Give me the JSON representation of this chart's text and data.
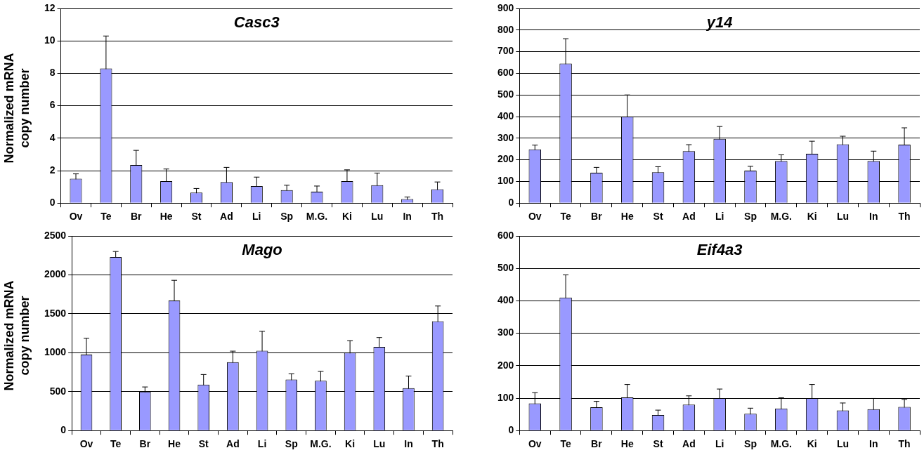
{
  "chart_data": [
    {
      "type": "bar",
      "title": "Casc3",
      "ylabel": "Normalized mRNA copy number",
      "categories": [
        "Ov",
        "Te",
        "Br",
        "He",
        "St",
        "Ad",
        "Li",
        "Sp",
        "M.G.",
        "Ki",
        "Lu",
        "In",
        "Th"
      ],
      "color": "#9999ff",
      "values": [
        1.5,
        8.3,
        2.35,
        1.35,
        0.65,
        1.3,
        1.05,
        0.8,
        0.7,
        1.35,
        1.1,
        0.25,
        0.85
      ],
      "errors": [
        0.3,
        2.0,
        0.9,
        0.75,
        0.25,
        0.9,
        0.55,
        0.3,
        0.35,
        0.7,
        0.75,
        0.12,
        0.45
      ],
      "ylim": [
        0,
        12
      ],
      "yticks": [
        0,
        2,
        4,
        6,
        8,
        10,
        12
      ],
      "grid": "y"
    },
    {
      "type": "bar",
      "title": "y14",
      "categories": [
        "Ov",
        "Te",
        "Br",
        "He",
        "St",
        "Ad",
        "Li",
        "Sp",
        "M.G.",
        "Ki",
        "Lu",
        "In",
        "Th"
      ],
      "color": "#9999ff",
      "values": [
        248,
        645,
        140,
        400,
        143,
        240,
        297,
        150,
        195,
        228,
        272,
        195,
        270
      ],
      "errors": [
        20,
        115,
        25,
        100,
        25,
        30,
        57,
        20,
        28,
        58,
        37,
        45,
        78
      ],
      "ylim": [
        0,
        900
      ],
      "yticks": [
        0,
        100,
        200,
        300,
        400,
        500,
        600,
        700,
        800,
        900
      ],
      "grid": "y"
    },
    {
      "type": "bar",
      "title": "Mago",
      "ylabel": "Normalized mRNA copy number",
      "categories": [
        "Ov",
        "Te",
        "Br",
        "He",
        "St",
        "Ad",
        "Li",
        "Sp",
        "M.G.",
        "Ki",
        "Lu",
        "In",
        "Th"
      ],
      "color": "#9999ff",
      "values": [
        975,
        2230,
        500,
        1670,
        590,
        880,
        1025,
        655,
        640,
        1000,
        1075,
        545,
        1405
      ],
      "errors": [
        210,
        70,
        60,
        260,
        130,
        140,
        250,
        75,
        120,
        155,
        120,
        155,
        195
      ],
      "ylim": [
        0,
        2500
      ],
      "yticks": [
        0,
        500,
        1000,
        1500,
        2000,
        2500
      ],
      "grid": "y"
    },
    {
      "type": "bar",
      "title": "Eif4a3",
      "categories": [
        "Ov",
        "Te",
        "Br",
        "He",
        "St",
        "Ad",
        "Li",
        "Sp",
        "M.G.",
        "Ki",
        "Lu",
        "In",
        "Th"
      ],
      "color": "#9999ff",
      "values": [
        84,
        410,
        72,
        102,
        48,
        80,
        100,
        52,
        68,
        100,
        62,
        66,
        73
      ],
      "errors": [
        33,
        70,
        18,
        40,
        15,
        27,
        28,
        17,
        33,
        42,
        23,
        33,
        23
      ],
      "ylim": [
        0,
        600
      ],
      "yticks": [
        0,
        100,
        200,
        300,
        400,
        500,
        600
      ],
      "grid": "y"
    }
  ]
}
